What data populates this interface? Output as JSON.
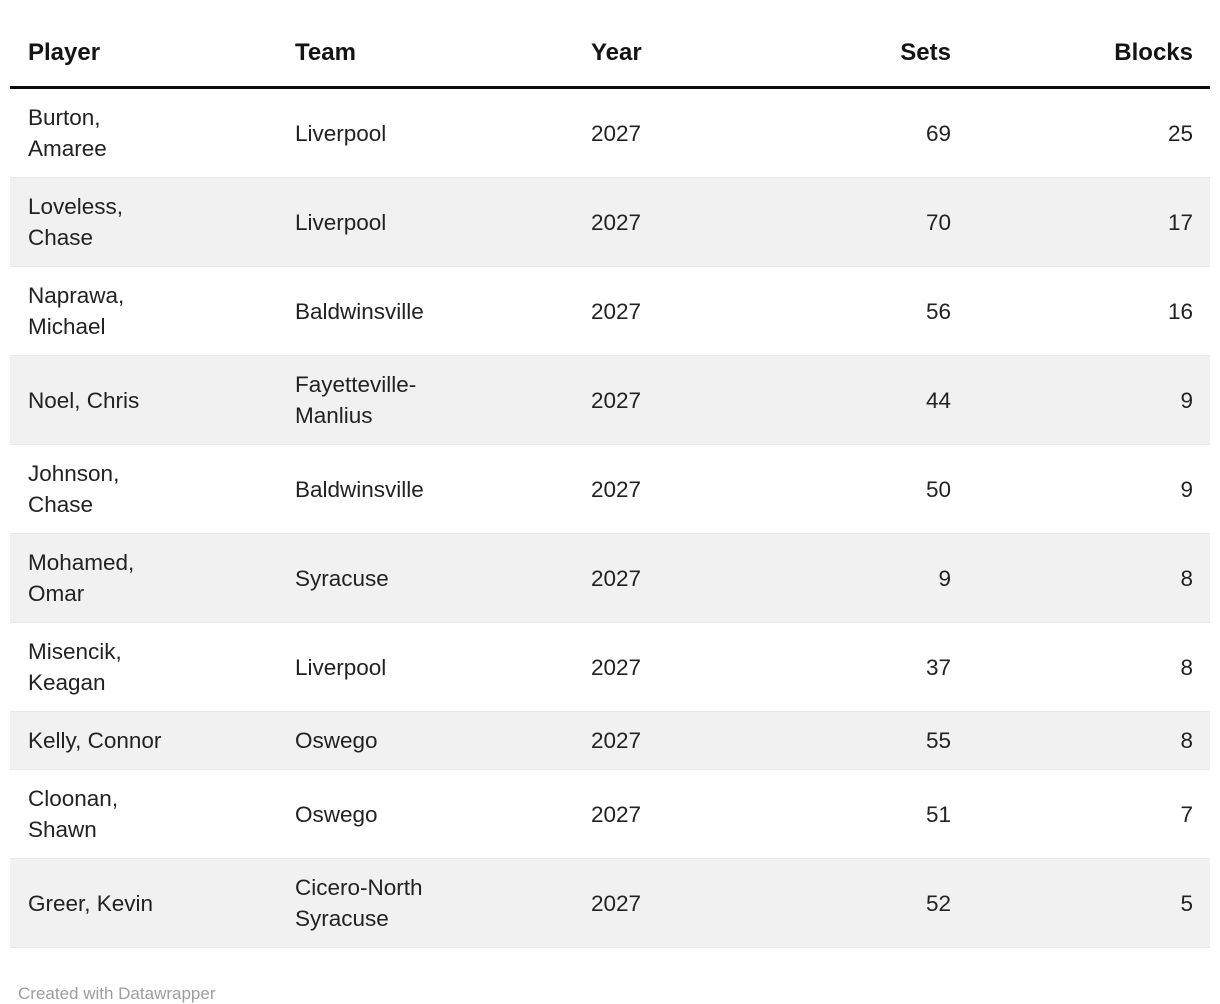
{
  "chart_data": {
    "type": "table",
    "columns": [
      "Player",
      "Team",
      "Year",
      "Sets",
      "Blocks"
    ],
    "rows": [
      [
        "Burton, Amaree",
        "Liverpool",
        2027,
        69,
        25
      ],
      [
        "Loveless, Chase",
        "Liverpool",
        2027,
        70,
        17
      ],
      [
        "Naprawa, Michael",
        "Baldwinsville",
        2027,
        56,
        16
      ],
      [
        "Noel, Chris",
        "Fayetteville-Manlius",
        2027,
        44,
        9
      ],
      [
        "Johnson, Chase",
        "Baldwinsville",
        2027,
        50,
        9
      ],
      [
        "Mohamed, Omar",
        "Syracuse",
        2027,
        9,
        8
      ],
      [
        "Misencik, Keagan",
        "Liverpool",
        2027,
        37,
        8
      ],
      [
        "Kelly, Connor",
        "Oswego",
        2027,
        55,
        8
      ],
      [
        "Cloonan, Shawn",
        "Oswego",
        2027,
        51,
        7
      ],
      [
        "Greer, Kevin",
        "Cicero-North Syracuse",
        2027,
        52,
        5
      ]
    ],
    "title": "",
    "legend_position": "none",
    "grid": "row-stripes"
  },
  "table": {
    "headers": {
      "player": "Player",
      "team": "Team",
      "year": "Year",
      "sets": "Sets",
      "blocks": "Blocks"
    },
    "rows": [
      {
        "player": "Burton,\nAmaree",
        "team": "Liverpool",
        "year": "2027",
        "sets": "69",
        "blocks": "25"
      },
      {
        "player": "Loveless,\nChase",
        "team": "Liverpool",
        "year": "2027",
        "sets": "70",
        "blocks": "17"
      },
      {
        "player": "Naprawa,\nMichael",
        "team": "Baldwinsville",
        "year": "2027",
        "sets": "56",
        "blocks": "16"
      },
      {
        "player": "Noel, Chris",
        "team": "Fayetteville-\nManlius",
        "year": "2027",
        "sets": "44",
        "blocks": "9"
      },
      {
        "player": "Johnson,\nChase",
        "team": "Baldwinsville",
        "year": "2027",
        "sets": "50",
        "blocks": "9"
      },
      {
        "player": "Mohamed,\nOmar",
        "team": "Syracuse",
        "year": "2027",
        "sets": "9",
        "blocks": "8"
      },
      {
        "player": "Misencik,\nKeagan",
        "team": "Liverpool",
        "year": "2027",
        "sets": "37",
        "blocks": "8"
      },
      {
        "player": "Kelly, Connor",
        "team": "Oswego",
        "year": "2027",
        "sets": "55",
        "blocks": "8"
      },
      {
        "player": "Cloonan,\nShawn",
        "team": "Oswego",
        "year": "2027",
        "sets": "51",
        "blocks": "7"
      },
      {
        "player": "Greer, Kevin",
        "team": "Cicero-North\nSyracuse",
        "year": "2027",
        "sets": "52",
        "blocks": "5"
      }
    ]
  },
  "footer": {
    "attribution": "Created with Datawrapper"
  },
  "colors": {
    "stripe": "#f1f1f1",
    "header_border": "#0b0b0b",
    "row_border": "#e8e8e8",
    "text": "#222222",
    "footer_text": "#9d9d9d"
  }
}
